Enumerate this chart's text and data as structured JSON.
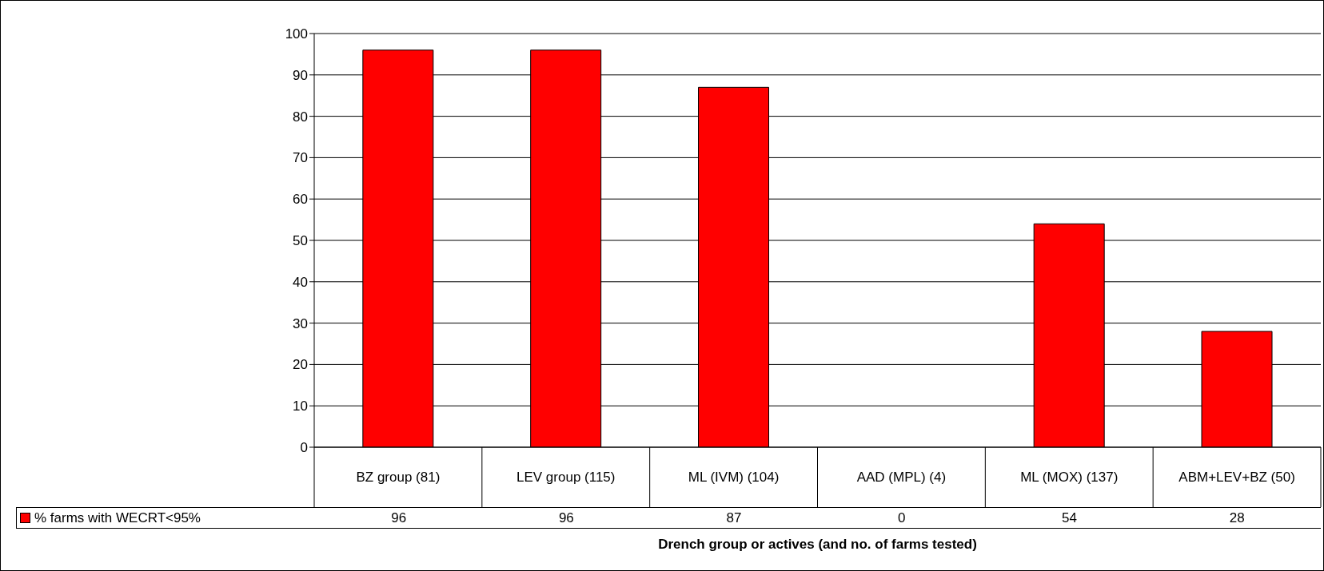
{
  "chart_data": {
    "type": "bar",
    "xlabel": "Drench group or actives (and no. of farms tested)",
    "categories": [
      "BZ group (81)",
      "LEV group (115)",
      "ML (IVM) (104)",
      "AAD (MPL) (4)",
      "ML (MOX) (137)",
      "ABM+LEV+BZ (50)"
    ],
    "series": [
      {
        "name": "% farms with WECRT<95%",
        "color": "#ff0000",
        "values": [
          96,
          96,
          87,
          0,
          54,
          28
        ]
      }
    ],
    "ylim": [
      0,
      100
    ],
    "yticks": [
      0,
      10,
      20,
      30,
      40,
      50,
      60,
      70,
      80,
      90,
      100
    ],
    "grid": "y",
    "legend": "bottom left",
    "data_labels": true
  }
}
